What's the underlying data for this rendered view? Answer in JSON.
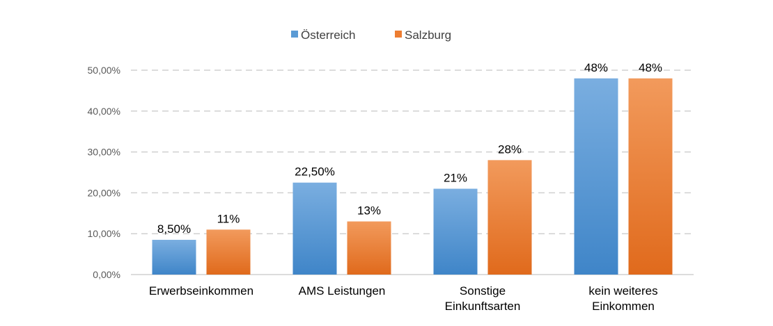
{
  "chart_data": {
    "type": "bar",
    "categories": [
      [
        "Erwerbseinkommen"
      ],
      [
        "AMS Leistungen"
      ],
      [
        "Sonstige",
        "Einkunftsarten"
      ],
      [
        "kein weiteres",
        "Einkommen"
      ]
    ],
    "series": [
      {
        "name": "Österreich",
        "color": "#5b9bd5",
        "values": [
          0.085,
          0.225,
          0.21,
          0.48
        ],
        "data_labels": [
          "8,50%",
          "22,50%",
          "21%",
          "48%"
        ]
      },
      {
        "name": "Salzburg",
        "color": "#ed7d31",
        "values": [
          0.11,
          0.13,
          0.28,
          0.48
        ],
        "data_labels": [
          "11%",
          "13%",
          "28%",
          "48%"
        ]
      }
    ],
    "ylim": [
      0,
      0.5
    ],
    "yticks": [
      0,
      0.1,
      0.2,
      0.3,
      0.4,
      0.5
    ],
    "ytick_labels": [
      "0,00%",
      "10,00%",
      "20,00%",
      "30,00%",
      "40,00%",
      "50,00%"
    ],
    "title": "",
    "xlabel": "",
    "ylabel": "",
    "legend_position": "top-center",
    "grid": true
  }
}
